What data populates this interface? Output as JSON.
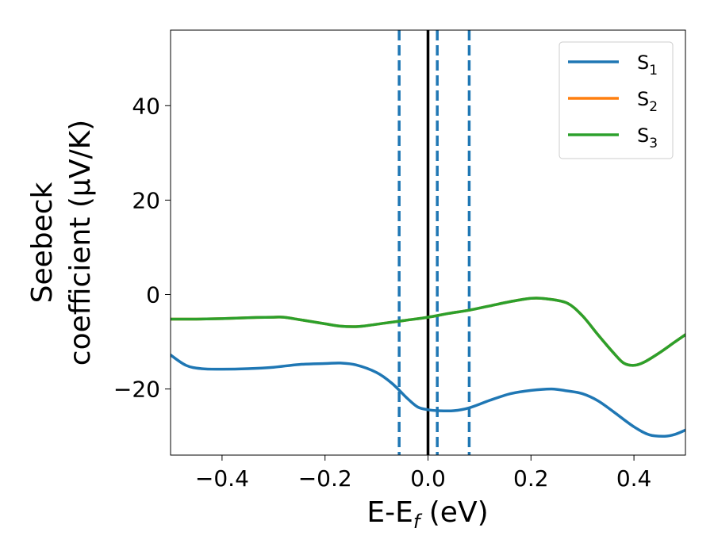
{
  "chart_data": {
    "type": "line",
    "xlabel": "E-E",
    "xlabel_sub": "f",
    "xlabel_unit": " (eV)",
    "ylabel_line1": "Seebeck",
    "ylabel_line2": "coefficient  (μV/K)",
    "xlim": [
      -0.5,
      0.5
    ],
    "ylim": [
      -34,
      56
    ],
    "xticks": [
      -0.4,
      -0.2,
      0.0,
      0.2,
      0.4
    ],
    "xtick_labels": [
      "−0.4",
      "−0.2",
      "0.0",
      "0.2",
      "0.4"
    ],
    "yticks": [
      -20,
      0,
      20,
      40
    ],
    "ytick_labels": [
      "−20",
      "0",
      "20",
      "40"
    ],
    "grid": false,
    "legend_position": "top-right",
    "vlines": [
      {
        "x": 0.0,
        "style": "solid",
        "color": "#000000"
      },
      {
        "x": -0.056,
        "style": "dashed",
        "color": "#1f77b4"
      },
      {
        "x": 0.018,
        "style": "dashed",
        "color": "#1f77b4"
      },
      {
        "x": 0.08,
        "style": "dashed",
        "color": "#1f77b4"
      }
    ],
    "series": [
      {
        "name": "S",
        "sub": "1",
        "color": "#1f77b4",
        "x": [
          -0.5,
          -0.47,
          -0.44,
          -0.4,
          -0.35,
          -0.3,
          -0.25,
          -0.2,
          -0.17,
          -0.14,
          -0.1,
          -0.07,
          -0.04,
          -0.02,
          0.0,
          0.02,
          0.05,
          0.08,
          0.12,
          0.16,
          0.2,
          0.24,
          0.27,
          0.3,
          0.33,
          0.36,
          0.4,
          0.43,
          0.46,
          0.48,
          0.5
        ],
        "y": [
          -12.8,
          -15.0,
          -15.7,
          -15.8,
          -15.7,
          -15.4,
          -14.8,
          -14.6,
          -14.5,
          -14.9,
          -16.5,
          -18.8,
          -22.0,
          -23.8,
          -24.4,
          -24.6,
          -24.6,
          -24.0,
          -22.4,
          -21.0,
          -20.3,
          -20.0,
          -20.4,
          -21.0,
          -22.5,
          -24.8,
          -28.0,
          -29.7,
          -30.0,
          -29.6,
          -28.7
        ]
      },
      {
        "name": "S",
        "sub": "2",
        "color": "#ff7f0e",
        "x": [
          -0.5,
          -0.45,
          -0.4,
          -0.35,
          -0.3,
          -0.28,
          -0.25,
          -0.2,
          -0.17,
          -0.14,
          -0.12,
          -0.08,
          -0.04,
          0.0,
          0.04,
          0.08,
          0.12,
          0.16,
          0.2,
          0.23,
          0.27,
          0.3,
          0.33,
          0.36,
          0.38,
          0.4,
          0.42,
          0.45,
          0.48,
          0.5
        ],
        "y": [
          -5.2,
          -5.2,
          -5.1,
          -4.9,
          -4.8,
          -4.8,
          -5.3,
          -6.2,
          -6.7,
          -6.8,
          -6.6,
          -6.0,
          -5.4,
          -4.8,
          -4.0,
          -3.3,
          -2.4,
          -1.5,
          -0.8,
          -0.9,
          -1.8,
          -4.5,
          -8.5,
          -12.3,
          -14.5,
          -15.0,
          -14.3,
          -12.3,
          -10.0,
          -8.5
        ]
      },
      {
        "name": "S",
        "sub": "3",
        "color": "#2ca02c",
        "x": [
          -0.5,
          -0.45,
          -0.4,
          -0.35,
          -0.3,
          -0.28,
          -0.25,
          -0.2,
          -0.17,
          -0.14,
          -0.12,
          -0.08,
          -0.04,
          0.0,
          0.04,
          0.08,
          0.12,
          0.16,
          0.2,
          0.23,
          0.27,
          0.3,
          0.33,
          0.36,
          0.38,
          0.4,
          0.42,
          0.45,
          0.48,
          0.5
        ],
        "y": [
          -5.2,
          -5.2,
          -5.1,
          -4.9,
          -4.8,
          -4.8,
          -5.3,
          -6.2,
          -6.7,
          -6.8,
          -6.6,
          -6.0,
          -5.4,
          -4.8,
          -4.0,
          -3.3,
          -2.4,
          -1.5,
          -0.8,
          -0.9,
          -1.8,
          -4.5,
          -8.5,
          -12.3,
          -14.5,
          -15.0,
          -14.3,
          -12.3,
          -10.0,
          -8.5
        ]
      }
    ]
  }
}
